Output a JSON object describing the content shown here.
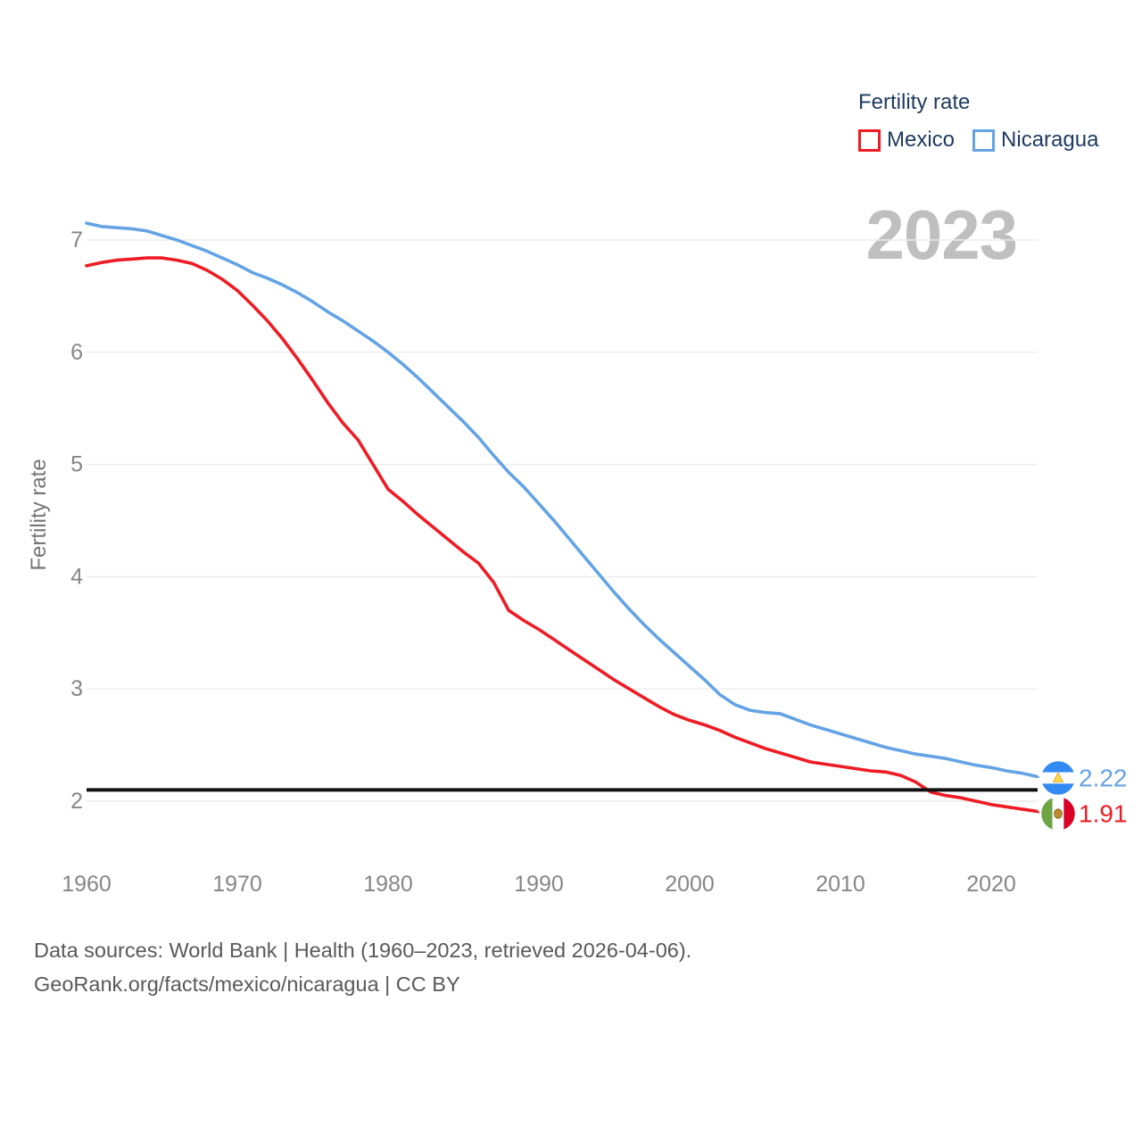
{
  "watermark": "2023",
  "chart_data": {
    "type": "line",
    "title": "Fertility rate",
    "ylabel": "Fertility rate",
    "xlabel": "",
    "grid": true,
    "legend_position": "top-right",
    "x_ticks": [
      1960,
      1970,
      1980,
      1990,
      2000,
      2010,
      2020
    ],
    "y_ticks": [
      2,
      3,
      4,
      5,
      6,
      7
    ],
    "xlim": [
      1960,
      2023
    ],
    "ylim": [
      1.85,
      7.3
    ],
    "reference_line": {
      "value": 2.1,
      "color": "#111111"
    },
    "x": [
      1960,
      1961,
      1962,
      1963,
      1964,
      1965,
      1966,
      1967,
      1968,
      1969,
      1970,
      1971,
      1972,
      1973,
      1974,
      1975,
      1976,
      1977,
      1978,
      1979,
      1980,
      1981,
      1982,
      1983,
      1984,
      1985,
      1986,
      1987,
      1988,
      1989,
      1990,
      1991,
      1992,
      1993,
      1994,
      1995,
      1996,
      1997,
      1998,
      1999,
      2000,
      2001,
      2002,
      2003,
      2004,
      2005,
      2006,
      2007,
      2008,
      2009,
      2010,
      2011,
      2012,
      2013,
      2014,
      2015,
      2016,
      2017,
      2018,
      2019,
      2020,
      2021,
      2022,
      2023
    ],
    "series": [
      {
        "name": "Mexico",
        "color": "#ee1c24",
        "end_label": "1.91",
        "flag": "mexico",
        "values": [
          6.77,
          6.8,
          6.82,
          6.83,
          6.84,
          6.84,
          6.82,
          6.79,
          6.73,
          6.65,
          6.55,
          6.42,
          6.28,
          6.12,
          5.94,
          5.75,
          5.55,
          5.37,
          5.22,
          5.0,
          4.78,
          4.67,
          4.55,
          4.44,
          4.33,
          4.22,
          4.12,
          3.95,
          3.7,
          3.61,
          3.53,
          3.44,
          3.35,
          3.26,
          3.17,
          3.08,
          3.0,
          2.92,
          2.84,
          2.77,
          2.72,
          2.68,
          2.63,
          2.57,
          2.52,
          2.47,
          2.43,
          2.39,
          2.35,
          2.33,
          2.31,
          2.29,
          2.27,
          2.26,
          2.23,
          2.17,
          2.08,
          2.05,
          2.03,
          2.0,
          1.97,
          1.95,
          1.93,
          1.91
        ]
      },
      {
        "name": "Nicaragua",
        "color": "#64a3e4",
        "end_label": "2.22",
        "flag": "nicaragua",
        "values": [
          7.15,
          7.12,
          7.11,
          7.1,
          7.08,
          7.04,
          7.0,
          6.95,
          6.9,
          6.84,
          6.78,
          6.71,
          6.66,
          6.6,
          6.53,
          6.45,
          6.36,
          6.28,
          6.19,
          6.1,
          6.0,
          5.89,
          5.77,
          5.64,
          5.51,
          5.38,
          5.24,
          5.08,
          4.93,
          4.8,
          4.65,
          4.5,
          4.34,
          4.18,
          4.02,
          3.86,
          3.71,
          3.57,
          3.44,
          3.32,
          3.2,
          3.08,
          2.95,
          2.86,
          2.81,
          2.79,
          2.78,
          2.73,
          2.68,
          2.64,
          2.6,
          2.56,
          2.52,
          2.48,
          2.45,
          2.42,
          2.4,
          2.38,
          2.35,
          2.32,
          2.3,
          2.27,
          2.25,
          2.22
        ]
      }
    ]
  },
  "footer": {
    "line1": "Data sources: World Bank | Health (1960–2023, retrieved 2026-04-06).",
    "line2": "GeoRank.org/facts/mexico/nicaragua | CC BY"
  },
  "colors": {
    "grid": "#ececec",
    "tick_text": "#868686",
    "axis_title": "#757575",
    "legend_text": "#1d3a5f",
    "watermark": "#bfbfbf",
    "footer_text": "#595959",
    "nicaragua_flag_blue": "#338af3",
    "mexico_flag_green": "#6da544",
    "mexico_flag_red": "#d80027",
    "emblem_gold": "#ffda44",
    "emblem_brown": "#bc8a2e"
  }
}
